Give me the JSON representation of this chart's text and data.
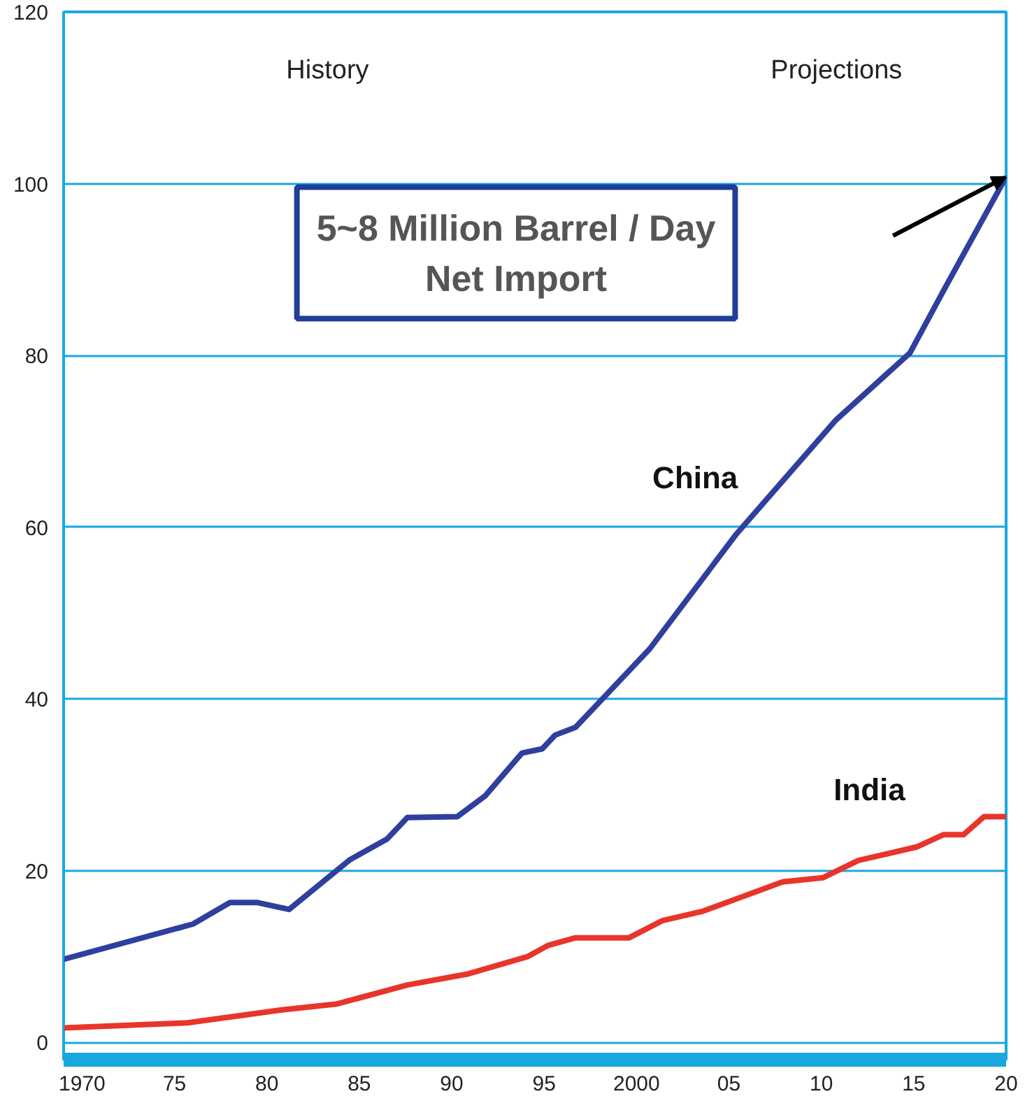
{
  "chart_data": {
    "type": "line",
    "xlim": [
      1969,
      2020
    ],
    "ylim": [
      -2,
      120
    ],
    "xticks": [
      {
        "value": 1970,
        "label": "1970"
      },
      {
        "value": 1975,
        "label": "75"
      },
      {
        "value": 1980,
        "label": "80"
      },
      {
        "value": 1985,
        "label": "85"
      },
      {
        "value": 1990,
        "label": "90"
      },
      {
        "value": 1995,
        "label": "95"
      },
      {
        "value": 2000,
        "label": "2000"
      },
      {
        "value": 2005,
        "label": "05"
      },
      {
        "value": 2010,
        "label": "10"
      },
      {
        "value": 2015,
        "label": "15"
      },
      {
        "value": 2020,
        "label": "20"
      }
    ],
    "yticks": [
      0,
      20,
      40,
      60,
      80,
      100,
      120
    ],
    "grid": "y",
    "marker": "none",
    "line_style": "solid",
    "series": [
      {
        "name": "China",
        "color": "#2e3f9e",
        "x": [
          1969,
          1976,
          1978,
          1979.5,
          1981.2,
          1984.5,
          1986.5,
          1987.6,
          1990.3,
          1991.8,
          1993.8,
          1994.9,
          1995.6,
          1996.7,
          2000.7,
          2005.4,
          2010.8,
          2014.8,
          2016.6,
          2020
        ],
        "values": [
          9.7,
          13.8,
          16.3,
          16.3,
          15.5,
          21.3,
          23.7,
          26.2,
          26.3,
          28.7,
          33.7,
          34.2,
          35.8,
          36.7,
          45.8,
          59.2,
          72.5,
          80.3,
          87.5,
          100.8
        ]
      },
      {
        "name": "India",
        "color": "#e8352b",
        "x": [
          1969,
          1975.7,
          1980.8,
          1983.8,
          1987.6,
          1990.9,
          1994.1,
          1995.2,
          1996.7,
          1999.6,
          2001.4,
          2003.6,
          2007.9,
          2010.1,
          2012,
          2015.2,
          2016.6,
          2017.7,
          2018.8,
          2020
        ],
        "values": [
          1.7,
          2.3,
          3.8,
          4.5,
          6.7,
          8,
          10,
          11.3,
          12.2,
          12.2,
          14.2,
          15.3,
          18.7,
          19.2,
          21.2,
          22.8,
          24.2,
          24.2,
          26.3,
          26.3
        ]
      }
    ],
    "annotations": [
      "History",
      "Projections",
      "5~8 Million Barrel / Day\nNet Import"
    ]
  }
}
